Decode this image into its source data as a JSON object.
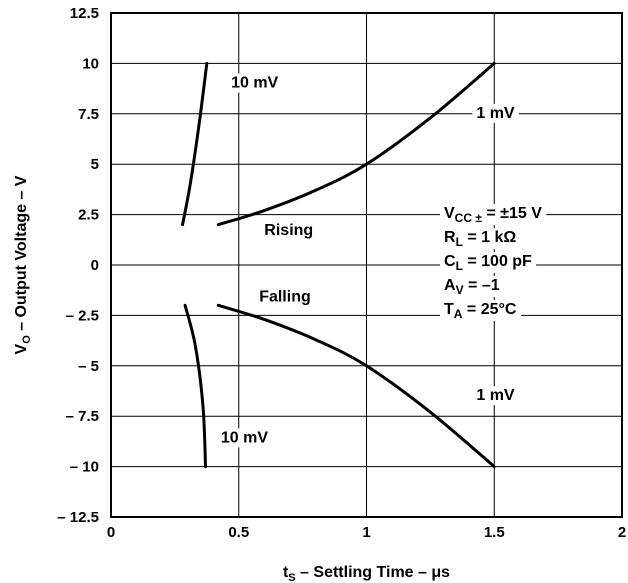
{
  "chart_data": {
    "type": "line",
    "x_range": [
      0,
      2
    ],
    "y_range": [
      -12.5,
      12.5
    ],
    "x_ticks": [
      0,
      0.5,
      1,
      1.5,
      2
    ],
    "x_tick_labels": [
      "0",
      "0.5",
      "1",
      "1.5",
      "2"
    ],
    "y_ticks": [
      12.5,
      10,
      7.5,
      5,
      2.5,
      0,
      -2.5,
      -5,
      -7.5,
      -10,
      -12.5
    ],
    "y_tick_labels": [
      "12.5",
      "10",
      "7.5",
      "5",
      "2.5",
      "0",
      "– 2.5",
      "– 5",
      "– 7.5",
      "– 10",
      "– 12.5"
    ],
    "grid": true,
    "xlabel": {
      "main": "t",
      "sub": "S",
      "rest": " – Settling Time – μs"
    },
    "ylabel": {
      "main": "V",
      "sub": "O",
      "rest": " – Output Voltage – V"
    },
    "series": [
      {
        "values": [
          [
            0.28,
            2.0
          ],
          [
            0.31,
            4.0
          ],
          [
            0.345,
            7.0
          ],
          [
            0.375,
            10.0
          ]
        ]
      },
      {
        "values": [
          [
            0.42,
            2.0
          ],
          [
            0.6,
            2.7
          ],
          [
            0.8,
            3.7
          ],
          [
            1.0,
            5.0
          ],
          [
            1.25,
            7.3
          ],
          [
            1.5,
            10.0
          ]
        ]
      },
      {
        "values": [
          [
            0.42,
            -2.0
          ],
          [
            0.6,
            -2.7
          ],
          [
            0.8,
            -3.7
          ],
          [
            1.0,
            -5.0
          ],
          [
            1.25,
            -7.3
          ],
          [
            1.5,
            -10.0
          ]
        ]
      },
      {
        "values": [
          [
            0.29,
            -2.0
          ],
          [
            0.33,
            -4.0
          ],
          [
            0.36,
            -7.0
          ],
          [
            0.37,
            -10.0
          ]
        ]
      }
    ],
    "annotations": {
      "rising_10mv": {
        "text": "10 mV",
        "x": 0.47,
        "y": 8.8
      },
      "rising_1mv": {
        "text": "1 mV",
        "x": 1.43,
        "y": 7.3
      },
      "rising": {
        "text": "Rising",
        "x": 0.6,
        "y": 1.5
      },
      "falling": {
        "text": "Falling",
        "x": 0.58,
        "y": -1.8
      },
      "falling_1mv": {
        "text": "1 mV",
        "x": 1.43,
        "y": -6.7
      },
      "falling_10mv": {
        "text": "10 mV",
        "x": 0.43,
        "y": -8.8
      }
    },
    "conditions": [
      {
        "main": "V",
        "sub": "CC ±",
        "rest": " = ±15 V"
      },
      {
        "main": "R",
        "sub": "L",
        "rest": " = 1 kΩ"
      },
      {
        "main": "C",
        "sub": "L",
        "rest": " = 100 pF"
      },
      {
        "main": "A",
        "sub": "V",
        "rest": " = –1"
      },
      {
        "main": "T",
        "sub": "A",
        "rest": " = 25°C"
      }
    ]
  }
}
